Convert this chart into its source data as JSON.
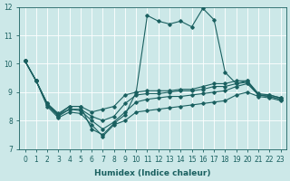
{
  "xlabel": "Humidex (Indice chaleur)",
  "bg_color": "#cce8e8",
  "line_color": "#1a6060",
  "grid_color": "#ffffff",
  "xlim": [
    -0.5,
    23.5
  ],
  "ylim": [
    7,
    12
  ],
  "yticks": [
    7,
    8,
    9,
    10,
    11,
    12
  ],
  "xticks": [
    0,
    1,
    2,
    3,
    4,
    5,
    6,
    7,
    8,
    9,
    10,
    11,
    12,
    13,
    14,
    15,
    16,
    17,
    18,
    19,
    20,
    21,
    22,
    23
  ],
  "lines": [
    {
      "x": [
        0,
        1,
        2,
        3,
        4,
        5,
        6,
        7,
        8,
        9,
        10,
        11,
        12,
        13,
        14,
        15,
        16,
        17,
        18,
        19,
        20,
        21,
        22,
        23
      ],
      "y": [
        10.1,
        9.4,
        8.6,
        8.2,
        8.5,
        8.5,
        7.7,
        7.5,
        7.9,
        8.2,
        9.0,
        11.7,
        11.5,
        11.4,
        11.5,
        11.3,
        11.95,
        11.55,
        9.7,
        9.3,
        9.4,
        8.9,
        8.9,
        8.8
      ]
    },
    {
      "x": [
        0,
        1,
        2,
        3,
        4,
        5,
        6,
        7,
        8,
        9,
        10,
        11,
        12,
        13,
        14,
        15,
        16,
        17,
        18,
        19,
        20,
        21,
        22,
        23
      ],
      "y": [
        10.1,
        9.4,
        8.6,
        8.25,
        8.5,
        8.5,
        8.3,
        8.4,
        8.5,
        8.9,
        9.0,
        9.05,
        9.05,
        9.05,
        9.1,
        9.1,
        9.2,
        9.3,
        9.3,
        9.4,
        9.4,
        8.95,
        8.9,
        8.8
      ]
    },
    {
      "x": [
        0,
        1,
        2,
        3,
        4,
        5,
        6,
        7,
        8,
        9,
        10,
        11,
        12,
        13,
        14,
        15,
        16,
        17,
        18,
        19,
        20,
        21,
        22,
        23
      ],
      "y": [
        10.1,
        9.4,
        8.6,
        8.2,
        8.4,
        8.4,
        8.15,
        8.0,
        8.15,
        8.6,
        8.9,
        8.95,
        8.95,
        9.0,
        9.05,
        9.05,
        9.1,
        9.2,
        9.2,
        9.3,
        9.35,
        8.9,
        8.85,
        8.75
      ]
    },
    {
      "x": [
        0,
        1,
        2,
        3,
        4,
        5,
        6,
        7,
        8,
        9,
        10,
        11,
        12,
        13,
        14,
        15,
        16,
        17,
        18,
        19,
        20,
        21,
        22,
        23
      ],
      "y": [
        10.1,
        9.4,
        8.55,
        8.15,
        8.4,
        8.35,
        8.0,
        7.7,
        7.95,
        8.3,
        8.65,
        8.75,
        8.8,
        8.85,
        8.85,
        8.9,
        8.95,
        9.0,
        9.05,
        9.2,
        9.3,
        8.9,
        8.85,
        8.75
      ]
    },
    {
      "x": [
        0,
        1,
        2,
        3,
        4,
        5,
        6,
        7,
        8,
        9,
        10,
        11,
        12,
        13,
        14,
        15,
        16,
        17,
        18,
        19,
        20,
        21,
        22,
        23
      ],
      "y": [
        10.1,
        9.4,
        8.5,
        8.1,
        8.3,
        8.25,
        7.85,
        7.45,
        7.85,
        8.0,
        8.3,
        8.35,
        8.4,
        8.45,
        8.5,
        8.55,
        8.6,
        8.65,
        8.7,
        8.9,
        9.0,
        8.85,
        8.8,
        8.7
      ]
    }
  ],
  "marker": "D",
  "markersize": 1.8,
  "linewidth": 0.8,
  "xlabel_fontsize": 6.5,
  "tick_fontsize": 5.5
}
